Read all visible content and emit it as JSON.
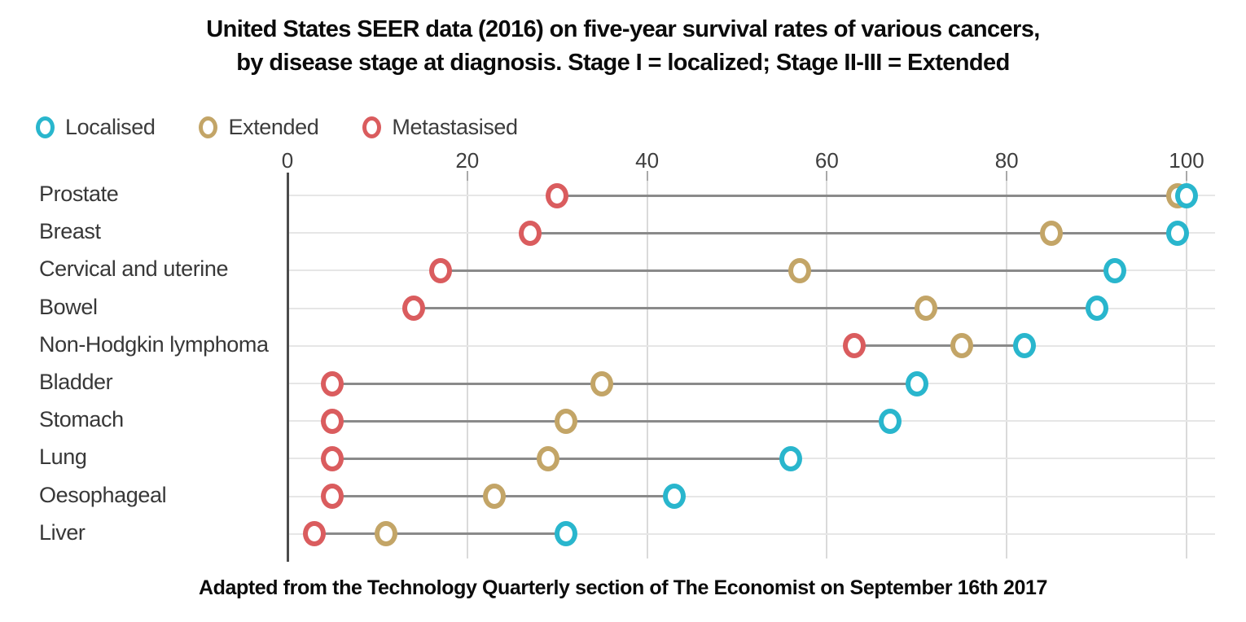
{
  "header": {
    "title_line1": "United States SEER data (2016) on five-year survival rates of various cancers,",
    "title_line2": "by disease stage at diagnosis. Stage I = localized; Stage II-III = Extended"
  },
  "legend": {
    "items": [
      {
        "label": "Localised",
        "color": "#29b6cd"
      },
      {
        "label": "Extended",
        "color": "#c3a567"
      },
      {
        "label": "Metastasised",
        "color": "#da5c5e"
      }
    ]
  },
  "chart_data": {
    "type": "scatter",
    "subtype": "dumbbell-dot-plot",
    "title": "United States SEER data (2016) on five-year survival rates of various cancers, by disease stage at diagnosis. Stage I = localized; Stage II-III = Extended",
    "orientation": "horizontal",
    "categories": [
      "Prostate",
      "Breast",
      "Cervical and uterine",
      "Bowel",
      "Non-Hodgkin lymphoma",
      "Bladder",
      "Stomach",
      "Lung",
      "Oesophageal",
      "Liver"
    ],
    "series": [
      {
        "name": "Localised",
        "color": "#29b6cd",
        "values": [
          100,
          99,
          92,
          90,
          82,
          70,
          67,
          56,
          43,
          31
        ]
      },
      {
        "name": "Extended",
        "color": "#c3a567",
        "values": [
          99,
          85,
          57,
          71,
          75,
          35,
          31,
          29,
          23,
          11
        ]
      },
      {
        "name": "Metastasised",
        "color": "#da5c5e",
        "values": [
          30,
          27,
          17,
          14,
          63,
          5,
          5,
          5,
          5,
          3
        ]
      }
    ],
    "x_axis": {
      "ticks": [
        0,
        20,
        40,
        60,
        80,
        100
      ],
      "range": [
        0,
        100
      ],
      "label": "",
      "position": "top"
    },
    "y_axis": {
      "label": ""
    },
    "grid": true,
    "legend_position": "top-left",
    "units": "percent five-year survival"
  },
  "footer": {
    "source": "Adapted from the Technology Quarterly section of The Economist on September 16th 2017"
  }
}
